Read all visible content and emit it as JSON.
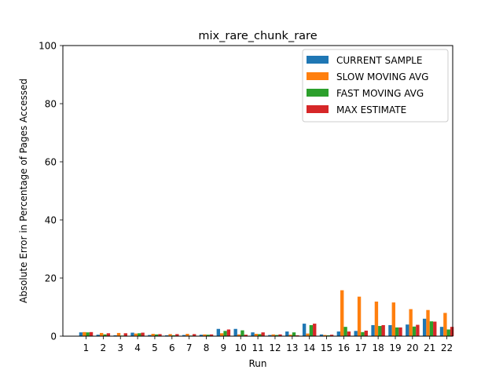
{
  "chart_data": {
    "type": "bar",
    "title": "mix_rare_chunk_rare",
    "xlabel": "Run",
    "ylabel": "Absolute Error in Percentage of Pages Accessed",
    "ylim": [
      0,
      100
    ],
    "yticks": [
      0,
      20,
      40,
      60,
      80,
      100
    ],
    "grid": false,
    "legend_position": "top-right",
    "categories": [
      "1",
      "2",
      "3",
      "4",
      "5",
      "6",
      "7",
      "8",
      "9",
      "10",
      "11",
      "12",
      "13",
      "14",
      "15",
      "16",
      "17",
      "18",
      "19",
      "20",
      "21",
      "22"
    ],
    "series": [
      {
        "name": "CURRENT SAMPLE",
        "color": "#1f77b4",
        "values": [
          1.3,
          0.5,
          0.3,
          1.2,
          0.4,
          0.3,
          0.4,
          0.5,
          2.5,
          2.5,
          1.3,
          0.4,
          1.6,
          4.3,
          0.6,
          1.6,
          1.8,
          3.8,
          3.8,
          4.0,
          6.0,
          3.2
        ]
      },
      {
        "name": "SLOW MOVING AVG",
        "color": "#ff7f0e",
        "values": [
          1.4,
          1.1,
          1.1,
          0.9,
          0.8,
          0.7,
          0.8,
          0.6,
          1.0,
          0.6,
          0.8,
          0.6,
          0.5,
          0.9,
          0.4,
          15.8,
          13.6,
          11.9,
          11.6,
          9.3,
          9.0,
          8.0
        ]
      },
      {
        "name": "FAST MOVING AVG",
        "color": "#2ca02c",
        "values": [
          1.3,
          0.6,
          0.2,
          1.0,
          0.6,
          0.3,
          0.2,
          0.5,
          1.8,
          2.0,
          0.7,
          0.4,
          1.3,
          3.8,
          0.3,
          3.2,
          1.4,
          3.5,
          3.0,
          3.3,
          5.1,
          2.3
        ]
      },
      {
        "name": "MAX ESTIMATE",
        "color": "#d62728",
        "values": [
          1.4,
          1.0,
          1.0,
          1.2,
          0.7,
          0.7,
          0.7,
          0.6,
          2.3,
          0.5,
          1.3,
          0.6,
          0.3,
          4.3,
          0.5,
          1.6,
          1.9,
          3.8,
          3.0,
          3.9,
          5.0,
          3.2
        ]
      }
    ]
  }
}
